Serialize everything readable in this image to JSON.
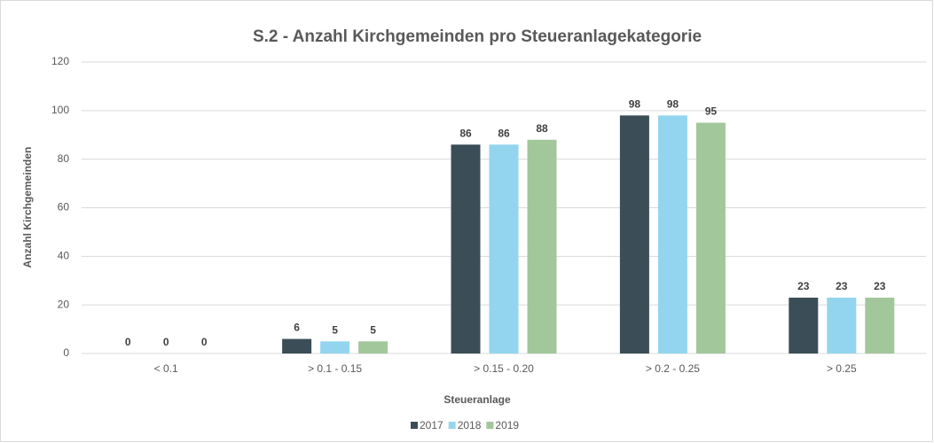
{
  "chart_data": {
    "type": "bar",
    "title": "S.2 - Anzahl Kirchgemeinden pro Steueranlagekategorie",
    "x_label": "Steueranlage",
    "y_label": "Anzahl Kirchgemeinden",
    "categories": [
      "< 0.1",
      "> 0.1 - 0.15",
      "> 0.15 - 0.20",
      "> 0.2 - 0.25",
      "> 0.25"
    ],
    "series": [
      {
        "name": "2017",
        "color": "#3b4d57",
        "values": [
          0,
          6,
          86,
          98,
          23
        ]
      },
      {
        "name": "2018",
        "color": "#93d5ee",
        "values": [
          0,
          5,
          86,
          98,
          23
        ]
      },
      {
        "name": "2019",
        "color": "#a1c79b",
        "values": [
          0,
          5,
          88,
          95,
          23
        ]
      }
    ],
    "ylim": [
      0,
      120
    ],
    "yticks": [
      0,
      20,
      40,
      60,
      80,
      100,
      120
    ],
    "grid": true,
    "legend": "bottom"
  }
}
